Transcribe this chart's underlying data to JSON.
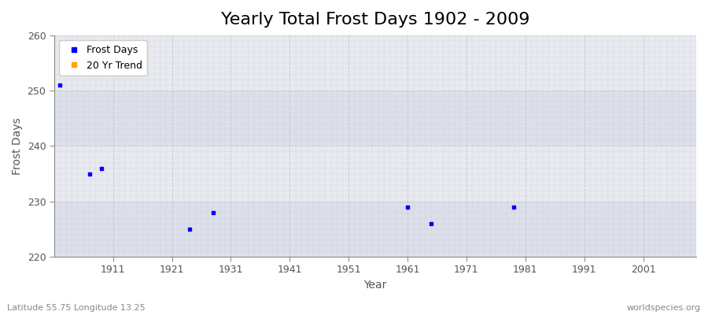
{
  "title": "Yearly Total Frost Days 1902 - 2009",
  "xlabel": "Year",
  "ylabel": "Frost Days",
  "xlim": [
    1901,
    2010
  ],
  "ylim": [
    220,
    260
  ],
  "yticks": [
    220,
    230,
    240,
    250,
    260
  ],
  "xticks": [
    1911,
    1921,
    1931,
    1941,
    1951,
    1961,
    1971,
    1981,
    1991,
    2001
  ],
  "fig_bg_color": "#ffffff",
  "plot_bg_color": "#e8eaf0",
  "band_color_alt": "#dde0ea",
  "scatter_color": "#0000ff",
  "scatter_size": 6,
  "data_points": [
    [
      1902,
      251
    ],
    [
      1907,
      235
    ],
    [
      1909,
      236
    ],
    [
      1924,
      225
    ],
    [
      1928,
      228
    ],
    [
      1961,
      229
    ],
    [
      1965,
      226
    ],
    [
      1979,
      229
    ]
  ],
  "legend_frost_label": "Frost Days",
  "legend_trend_label": "20 Yr Trend",
  "legend_frost_color": "#0000ff",
  "legend_trend_color": "#ffa500",
  "footnote_left": "Latitude 55.75 Longitude 13.25",
  "footnote_right": "worldspecies.org",
  "title_fontsize": 16,
  "axis_label_fontsize": 10,
  "tick_fontsize": 9,
  "footnote_fontsize": 8,
  "grid_color": "#c0c4d0",
  "tick_color": "#555555",
  "spine_color": "#888888"
}
